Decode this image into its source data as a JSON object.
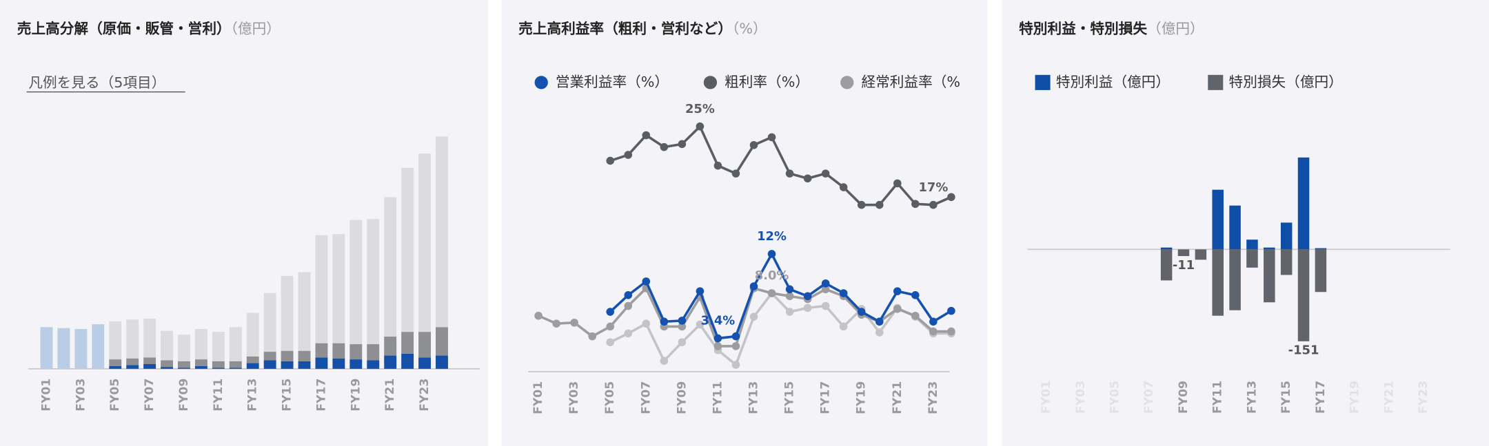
{
  "chart_data": [
    {
      "type": "bar",
      "stacked": true,
      "title": "売上高分解（原価・販管・営利）",
      "subtitle": "（億円）",
      "legend_button": "凡例を見る（5項目）",
      "categories": [
        "FY01",
        null,
        "FY03",
        null,
        "FY05",
        null,
        "FY07",
        null,
        "FY09",
        null,
        "FY11",
        null,
        "FY13",
        null,
        "FY15",
        null,
        "FY17",
        null,
        "FY19",
        null,
        "FY21",
        null,
        "FY23",
        null
      ],
      "ylim": [
        0,
        260
      ],
      "series": [
        {
          "color": "#b9cde6",
          "values": [
            44,
            43,
            42,
            47,
            null,
            null,
            null,
            null,
            null,
            null,
            null,
            null,
            null,
            null,
            null,
            null,
            null,
            null,
            null,
            null,
            null,
            null,
            null,
            null
          ]
        },
        {
          "color": "#1550a8",
          "values": [
            null,
            null,
            null,
            null,
            3,
            4,
            5,
            2,
            1,
            3,
            1,
            1,
            6,
            9,
            8,
            8,
            12,
            11,
            10,
            9,
            14,
            16,
            12,
            14
          ]
        },
        {
          "color": "#8e8f93",
          "values": [
            null,
            null,
            null,
            null,
            7,
            7,
            7,
            7,
            7,
            7,
            7,
            7,
            7,
            9,
            11,
            11,
            15,
            16,
            16,
            17,
            20,
            23,
            27,
            30
          ]
        },
        {
          "color": "#dcdcdf",
          "values": [
            null,
            null,
            null,
            null,
            40,
            41,
            41,
            31,
            28,
            32,
            31,
            36,
            46,
            62,
            79,
            83,
            114,
            115,
            131,
            132,
            147,
            173,
            188,
            201
          ]
        }
      ]
    },
    {
      "type": "line",
      "title": "売上高利益率（粗利・営利など）",
      "subtitle": "（%）",
      "categories": [
        "FY01",
        null,
        "FY03",
        null,
        "FY05",
        null,
        "FY07",
        null,
        "FY09",
        null,
        "FY11",
        null,
        "FY13",
        null,
        "FY15",
        null,
        "FY17",
        null,
        "FY19",
        null,
        "FY21",
        null,
        "FY23",
        null
      ],
      "ylim": [
        0,
        26
      ],
      "series": [
        {
          "name": "営業利益率（%）",
          "color": "#1552b0",
          "values": [
            null,
            null,
            null,
            null,
            6.1,
            7.8,
            9.2,
            5.1,
            5.2,
            8.2,
            3.4,
            3.6,
            8.7,
            12,
            8.4,
            7.7,
            9.0,
            8.0,
            6.1,
            5.1,
            8.2,
            7.8,
            5.1,
            6.2
          ],
          "value_labels": [
            null,
            null,
            null,
            null,
            null,
            null,
            null,
            null,
            null,
            null,
            "3.4%",
            null,
            null,
            "12%",
            null,
            null,
            null,
            null,
            null,
            null,
            null,
            null,
            null,
            null
          ]
        },
        {
          "name": "粗利率（%）",
          "color": "#5a5d63",
          "values": [
            null,
            null,
            null,
            null,
            21.5,
            22.1,
            24.1,
            22.9,
            23.2,
            25,
            21.0,
            20.2,
            23.1,
            23.9,
            20.2,
            19.7,
            20.2,
            18.8,
            17.0,
            17.0,
            19.2,
            17.1,
            17,
            17.8
          ],
          "value_labels": [
            null,
            null,
            null,
            null,
            null,
            null,
            null,
            null,
            null,
            "25%",
            null,
            null,
            null,
            null,
            null,
            null,
            null,
            null,
            null,
            null,
            null,
            null,
            "17%",
            null
          ]
        },
        {
          "name": "経常利益率（%）",
          "color": "#9d9d9f",
          "values": [
            5.7,
            4.9,
            5.0,
            3.6,
            4.6,
            6.7,
            8.5,
            4.6,
            4.6,
            7.6,
            2.6,
            2.6,
            8.5,
            8.0,
            7.7,
            7.4,
            8.4,
            7.7,
            5.8,
            5.1,
            6.4,
            5.7,
            4.1,
            4.1
          ],
          "value_labels": [
            null,
            null,
            null,
            null,
            null,
            null,
            null,
            null,
            null,
            null,
            null,
            null,
            null,
            "8.0%",
            null,
            null,
            null,
            null,
            null,
            null,
            null,
            null,
            null,
            null
          ]
        },
        {
          "color": "#c4c4c6",
          "values": [
            null,
            null,
            null,
            null,
            3.0,
            3.9,
            4.9,
            1.1,
            3.0,
            4.8,
            2.2,
            0.7,
            5.6,
            8.0,
            6.1,
            6.5,
            6.7,
            4.6,
            6.4,
            4.0,
            6.5,
            5.6,
            3.9,
            3.9
          ]
        }
      ]
    },
    {
      "type": "bar",
      "title": "特別利益・特別損失",
      "subtitle": "（億円）",
      "categories": [
        "FY01",
        null,
        "FY03",
        null,
        "FY05",
        null,
        "FY07",
        null,
        "FY09",
        null,
        "FY11",
        null,
        "FY13",
        null,
        "FY15",
        null,
        "FY17",
        null,
        "FY19",
        null,
        "FY21",
        null,
        "FY23",
        null
      ],
      "ylim": [
        -200,
        220
      ],
      "series": [
        {
          "name": "特別利益（億円）",
          "color": "#0e4ea8",
          "values": [
            null,
            null,
            null,
            null,
            null,
            null,
            null,
            3,
            0,
            0,
            98,
            72,
            16,
            3,
            44,
            151,
            2,
            null,
            null,
            null,
            null,
            null,
            null,
            null
          ]
        },
        {
          "name": "特別損失（億円）",
          "color": "#61656b",
          "values": [
            null,
            null,
            null,
            null,
            null,
            null,
            null,
            -51,
            -11,
            -17,
            -109,
            -100,
            -30,
            -87,
            -42,
            -151,
            -70,
            null,
            null,
            null,
            null,
            null,
            null,
            null
          ],
          "value_labels": [
            null,
            null,
            null,
            null,
            null,
            null,
            null,
            null,
            "-11",
            null,
            null,
            null,
            null,
            null,
            null,
            "-151",
            null,
            null,
            null,
            null,
            null,
            null,
            null,
            null
          ]
        }
      ]
    }
  ]
}
